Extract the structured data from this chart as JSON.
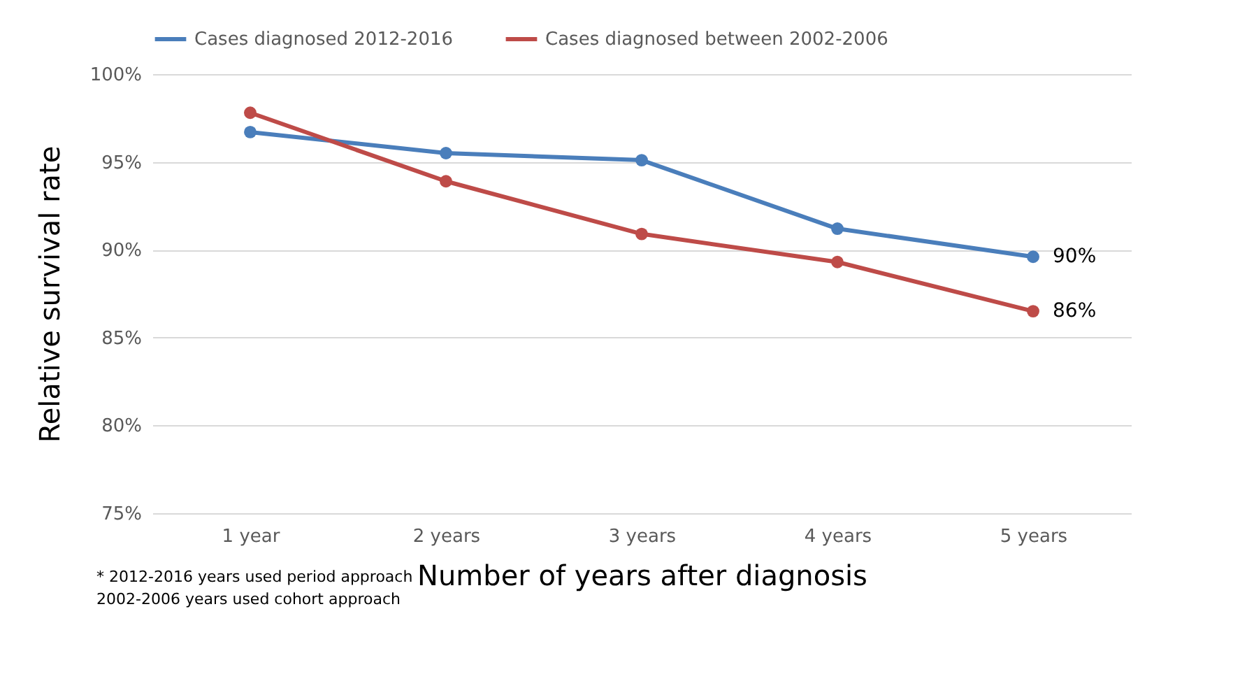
{
  "chart_data": {
    "type": "line",
    "xlabel": "Number of years after diagnosis",
    "ylabel": "Relative survival rate",
    "categories": [
      "1 year",
      "2 years",
      "3 years",
      "4 years",
      "5 years"
    ],
    "series": [
      {
        "name": "Cases diagnosed 2012-2016",
        "color": "#4a7ebb",
        "values": [
          96.7,
          95.5,
          95.1,
          91.2,
          89.6
        ],
        "value_labels": [
          null,
          null,
          null,
          null,
          "90%"
        ]
      },
      {
        "name": "Cases diagnosed between 2002-2006",
        "color": "#be4b48",
        "values": [
          97.8,
          93.9,
          90.9,
          89.3,
          86.5
        ],
        "value_labels": [
          null,
          null,
          null,
          null,
          "86%"
        ]
      }
    ],
    "ylim": [
      75,
      100
    ],
    "yticks": [
      {
        "value": 75,
        "label": "75%"
      },
      {
        "value": 80,
        "label": "80%"
      },
      {
        "value": 85,
        "label": "85%"
      },
      {
        "value": 90,
        "label": "90%"
      },
      {
        "value": 95,
        "label": "95%"
      },
      {
        "value": 100,
        "label": "100%"
      }
    ],
    "grid": "y",
    "legend": "top",
    "marker": "circle",
    "line_style": "solid",
    "annotations": [
      "* 2012-2016 years used period approach\n  2002-2006 years used cohort approach"
    ]
  }
}
